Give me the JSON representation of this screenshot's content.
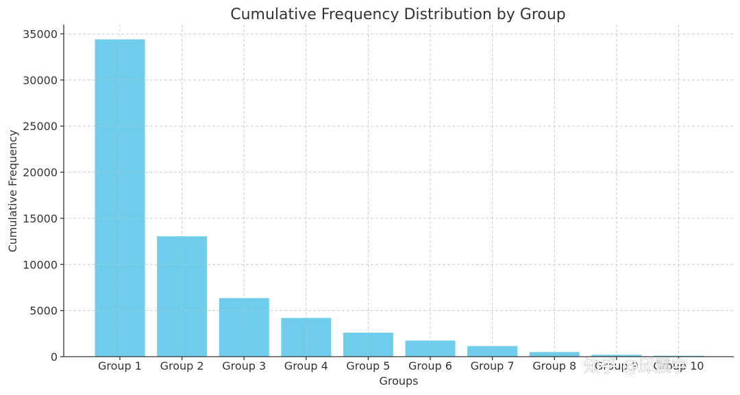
{
  "chart_data": {
    "type": "bar",
    "title": "Cumulative Frequency Distribution by Group",
    "xlabel": "Groups",
    "ylabel": "Cumulative Frequency",
    "categories": [
      "Group 1",
      "Group 2",
      "Group 3",
      "Group 4",
      "Group 5",
      "Group 6",
      "Group 7",
      "Group 8",
      "Group 9",
      "Group 10"
    ],
    "values": [
      34400,
      13050,
      6350,
      4200,
      2600,
      1750,
      1150,
      500,
      200,
      100
    ],
    "ylim": [
      0,
      36000
    ],
    "yticks": [
      0,
      5000,
      10000,
      15000,
      20000,
      25000,
      30000,
      35000
    ],
    "grid": true,
    "bar_color": "#6fcdeb"
  },
  "watermark": "知乎 @邱震宇"
}
